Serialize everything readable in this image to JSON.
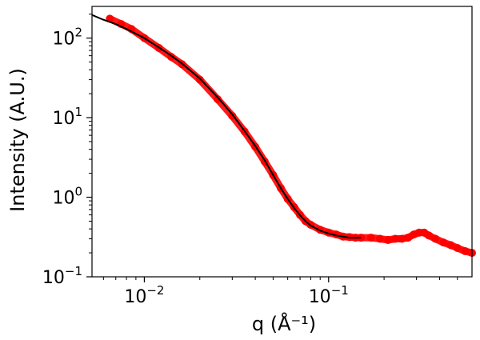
{
  "chart_data": {
    "type": "scatter",
    "xscale": "log",
    "yscale": "log",
    "xlim": [
      0.0052,
      0.6
    ],
    "ylim": [
      0.1,
      250
    ],
    "xlabel": "q (Å⁻¹)",
    "ylabel": "Intensity (A.U.)",
    "grid": false,
    "x_ticks": [
      {
        "value": 0.01,
        "mantissa": "10",
        "exponent": "−2"
      },
      {
        "value": 0.1,
        "mantissa": "10",
        "exponent": "−1"
      }
    ],
    "y_ticks": [
      {
        "value": 0.1,
        "mantissa": "10",
        "exponent": "−1"
      },
      {
        "value": 1,
        "mantissa": "10",
        "exponent": "0"
      },
      {
        "value": 10,
        "mantissa": "10",
        "exponent": "1"
      },
      {
        "value": 100,
        "mantissa": "10",
        "exponent": "2"
      }
    ],
    "series": [
      {
        "kind": "data",
        "color": "#ff0000",
        "x": [
          0.0065,
          0.0075,
          0.0085,
          0.01,
          0.012,
          0.014,
          0.016,
          0.02,
          0.025,
          0.03,
          0.035,
          0.04,
          0.045,
          0.05,
          0.055,
          0.06,
          0.065,
          0.07,
          0.075,
          0.08,
          0.09,
          0.1,
          0.11,
          0.12,
          0.13,
          0.14,
          0.15,
          0.17,
          0.19,
          0.21,
          0.23,
          0.25,
          0.27,
          0.29,
          0.31,
          0.33,
          0.35,
          0.38,
          0.42,
          0.46,
          0.5,
          0.55,
          0.6
        ],
        "y": [
          175,
          150,
          130,
          100,
          75,
          58,
          47,
          30,
          17,
          10.5,
          6.7,
          4.3,
          2.8,
          1.9,
          1.3,
          0.95,
          0.75,
          0.6,
          0.5,
          0.45,
          0.39,
          0.36,
          0.34,
          0.32,
          0.315,
          0.31,
          0.31,
          0.31,
          0.3,
          0.29,
          0.3,
          0.3,
          0.31,
          0.34,
          0.36,
          0.36,
          0.33,
          0.3,
          0.27,
          0.25,
          0.23,
          0.21,
          0.2
        ]
      },
      {
        "kind": "fit",
        "color": "#000000",
        "x": [
          0.0052,
          0.006,
          0.007,
          0.008,
          0.01,
          0.012,
          0.014,
          0.016,
          0.02,
          0.025,
          0.03,
          0.035,
          0.04,
          0.045,
          0.05,
          0.055,
          0.06,
          0.065,
          0.07,
          0.075,
          0.08,
          0.09,
          0.1,
          0.11,
          0.12,
          0.13,
          0.14,
          0.15
        ],
        "y": [
          195,
          170,
          150,
          130,
          100,
          76,
          60,
          48,
          31,
          18,
          11,
          6.8,
          4.4,
          2.9,
          1.9,
          1.3,
          0.95,
          0.73,
          0.59,
          0.5,
          0.44,
          0.38,
          0.35,
          0.33,
          0.32,
          0.31,
          0.31,
          0.31
        ]
      }
    ]
  }
}
